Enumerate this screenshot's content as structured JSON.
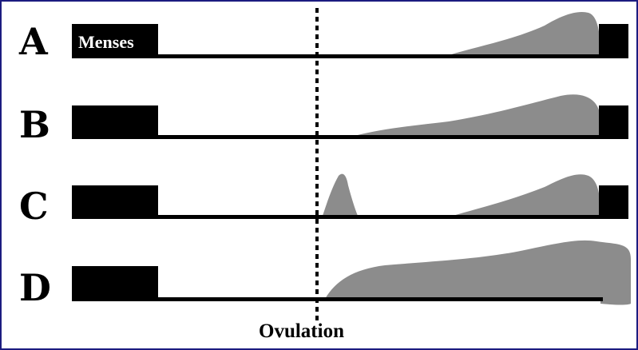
{
  "rows": [
    {
      "letter": "A"
    },
    {
      "letter": "B"
    },
    {
      "letter": "C"
    },
    {
      "letter": "D"
    }
  ],
  "labels": {
    "menses": "Menses",
    "ovulation": "Ovulation"
  },
  "colors": {
    "bar": "#000000",
    "curve": "#8c8c8c",
    "border": "#1c1c80",
    "divider": "#000000"
  }
}
